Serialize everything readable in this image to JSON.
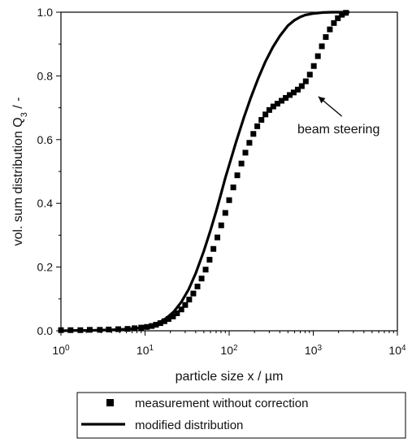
{
  "chart_data": {
    "type": "scatter",
    "xlabel": "particle size x / µm",
    "ylabel_main": "vol. sum distribution Q",
    "ylabel_sub": "3",
    "ylabel_suffix": " / -",
    "xscale": "log",
    "xlim": [
      1,
      10000
    ],
    "ylim": [
      0,
      1.0
    ],
    "x_ticks": [
      {
        "base": "10",
        "exp": "0",
        "value": 1
      },
      {
        "base": "10",
        "exp": "1",
        "value": 10
      },
      {
        "base": "10",
        "exp": "2",
        "value": 100
      },
      {
        "base": "10",
        "exp": "3",
        "value": 1000
      },
      {
        "base": "10",
        "exp": "4",
        "value": 10000
      }
    ],
    "y_ticks": [
      "0.0",
      "0.2",
      "0.4",
      "0.6",
      "0.8",
      "1.0"
    ],
    "grid": false,
    "legend_position": "bottom",
    "series": [
      {
        "name": "measurement without correction",
        "marker": "square",
        "color": "#000000",
        "x": [
          1.0,
          1.3,
          1.7,
          2.2,
          2.9,
          3.7,
          4.8,
          6.2,
          7.5,
          9.0,
          10.5,
          12.0,
          13.5,
          15.2,
          17.0,
          19.0,
          21.5,
          24.0,
          27.0,
          30.0,
          33.5,
          37.5,
          42.0,
          47.0,
          52.5,
          58.5,
          65.0,
          72.5,
          80.5,
          90.0,
          100.0,
          112.0,
          125.0,
          140.0,
          156.0,
          174.0,
          194.0,
          216.0,
          242.0,
          270.0,
          300.0,
          335.0,
          375.0,
          420.0,
          470.0,
          525.0,
          585.0,
          655.0,
          730.0,
          815.0,
          910.0,
          1015.0,
          1135.0,
          1265.0,
          1410.0,
          1575.0,
          1760.0,
          1960.0,
          2190.0,
          2440.0
        ],
        "y": [
          0.002,
          0.002,
          0.002,
          0.003,
          0.003,
          0.004,
          0.005,
          0.006,
          0.008,
          0.01,
          0.012,
          0.015,
          0.019,
          0.024,
          0.03,
          0.037,
          0.045,
          0.055,
          0.067,
          0.081,
          0.098,
          0.117,
          0.139,
          0.164,
          0.192,
          0.223,
          0.257,
          0.293,
          0.331,
          0.37,
          0.41,
          0.45,
          0.488,
          0.525,
          0.559,
          0.59,
          0.618,
          0.642,
          0.662,
          0.679,
          0.693,
          0.704,
          0.713,
          0.722,
          0.731,
          0.74,
          0.748,
          0.757,
          0.768,
          0.783,
          0.804,
          0.831,
          0.862,
          0.893,
          0.922,
          0.946,
          0.966,
          0.981,
          0.992,
          0.998
        ]
      },
      {
        "name": "modified distribution",
        "marker": "line",
        "color": "#000000",
        "x": [
          1,
          1.5,
          2,
          3,
          4,
          5,
          6,
          8,
          10,
          12,
          15,
          18,
          22,
          27,
          33,
          40,
          50,
          60,
          70,
          80,
          90,
          100,
          120,
          150,
          180,
          220,
          270,
          330,
          400,
          500,
          600,
          700,
          800,
          1000,
          1300,
          1700,
          2200,
          2700
        ],
        "y": [
          0.0,
          0.001,
          0.001,
          0.002,
          0.003,
          0.004,
          0.005,
          0.008,
          0.012,
          0.017,
          0.027,
          0.04,
          0.06,
          0.09,
          0.13,
          0.18,
          0.25,
          0.315,
          0.375,
          0.43,
          0.48,
          0.52,
          0.59,
          0.67,
          0.73,
          0.79,
          0.845,
          0.89,
          0.925,
          0.958,
          0.975,
          0.985,
          0.991,
          0.996,
          0.999,
          1.0,
          1.0,
          1.0
        ]
      }
    ],
    "annotation": {
      "text": "beam steering",
      "x": 2000,
      "y": 0.62,
      "arrow_to": {
        "x": 1150,
        "y": 0.735
      }
    }
  }
}
